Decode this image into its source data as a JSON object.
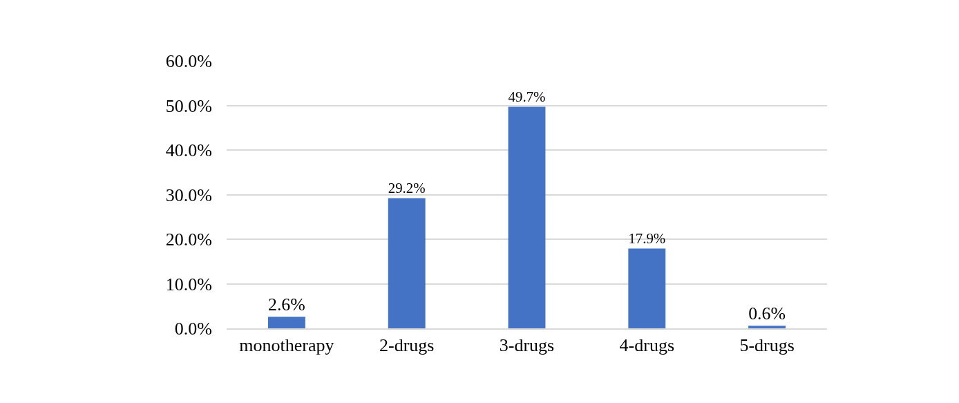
{
  "chart_data": {
    "type": "bar",
    "categories": [
      "monotherapy",
      "2-drugs",
      "3-drugs",
      "4-drugs",
      "5-drugs"
    ],
    "values": [
      2.6,
      29.2,
      49.7,
      17.9,
      0.6
    ],
    "value_labels": [
      "2.6%",
      "29.2%",
      "49.7%",
      "17.9%",
      "0.6%"
    ],
    "color": "#4472c4",
    "ylim": [
      0,
      60
    ],
    "yticks": [
      {
        "value": 0,
        "label": "0.0%"
      },
      {
        "value": 10,
        "label": "10.0%"
      },
      {
        "value": 20,
        "label": "20.0%"
      },
      {
        "value": 30,
        "label": "30.0%"
      },
      {
        "value": 40,
        "label": "40.0%"
      },
      {
        "value": 50,
        "label": "50.0%"
      },
      {
        "value": 60,
        "label": "60.0%"
      }
    ],
    "grid": "y"
  }
}
